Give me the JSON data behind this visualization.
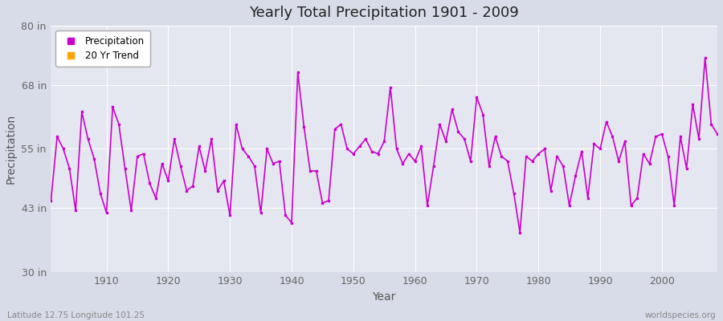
{
  "title": "Yearly Total Precipitation 1901 - 2009",
  "xlabel": "Year",
  "ylabel": "Precipitation",
  "x_label_bottom_left": "Latitude 12.75 Longitude 101.25",
  "x_label_bottom_right": "worldspecies.org",
  "ylim": [
    30,
    80
  ],
  "xlim": [
    1901,
    2009
  ],
  "yticks": [
    30,
    43,
    55,
    68,
    80
  ],
  "ytick_labels": [
    "30 in",
    "43 in",
    "55 in",
    "68 in",
    "80 in"
  ],
  "xticks": [
    1910,
    1920,
    1930,
    1940,
    1950,
    1960,
    1970,
    1980,
    1990,
    2000
  ],
  "bg_color": "#dfe3ee",
  "plot_bg_color": "#e8e8f0",
  "line_color": "#cc00cc",
  "trend_color": "#ffa500",
  "grid_color": "#ffffff",
  "years": [
    1901,
    1902,
    1903,
    1904,
    1905,
    1906,
    1907,
    1908,
    1909,
    1910,
    1911,
    1912,
    1913,
    1914,
    1915,
    1916,
    1917,
    1918,
    1919,
    1920,
    1921,
    1922,
    1923,
    1924,
    1925,
    1926,
    1927,
    1928,
    1929,
    1930,
    1931,
    1932,
    1933,
    1934,
    1935,
    1936,
    1937,
    1938,
    1939,
    1940,
    1941,
    1942,
    1943,
    1944,
    1945,
    1946,
    1947,
    1948,
    1949,
    1950,
    1951,
    1952,
    1953,
    1954,
    1955,
    1956,
    1957,
    1958,
    1959,
    1960,
    1961,
    1962,
    1963,
    1964,
    1965,
    1966,
    1967,
    1968,
    1969,
    1970,
    1971,
    1972,
    1973,
    1974,
    1975,
    1976,
    1977,
    1978,
    1979,
    1980,
    1981,
    1982,
    1983,
    1984,
    1985,
    1986,
    1987,
    1988,
    1989,
    1990,
    1991,
    1992,
    1993,
    1994,
    1995,
    1996,
    1997,
    1998,
    1999,
    2000,
    2001,
    2002,
    2003,
    2004,
    2005,
    2006,
    2007,
    2008,
    2009
  ],
  "precip": [
    44.5,
    57.5,
    55.0,
    51.0,
    42.5,
    62.5,
    57.0,
    53.0,
    46.0,
    42.0,
    63.5,
    60.0,
    51.0,
    42.5,
    53.5,
    54.0,
    48.0,
    45.0,
    52.0,
    48.5,
    57.0,
    51.5,
    46.5,
    47.5,
    55.5,
    50.5,
    57.0,
    46.5,
    48.5,
    41.5,
    60.0,
    55.0,
    53.5,
    51.5,
    42.0,
    55.0,
    52.0,
    52.5,
    41.5,
    40.0,
    70.5,
    59.5,
    50.5,
    50.5,
    44.0,
    44.5,
    59.0,
    60.0,
    55.0,
    54.0,
    55.5,
    57.0,
    54.5,
    54.0,
    56.5,
    67.5,
    55.0,
    52.0,
    54.0,
    52.5,
    55.5,
    43.5,
    51.5,
    60.0,
    56.5,
    63.0,
    58.5,
    57.0,
    52.5,
    65.5,
    62.0,
    51.5,
    57.5,
    53.5,
    52.5,
    46.0,
    38.0,
    53.5,
    52.5,
    54.0,
    55.0,
    46.5,
    53.5,
    51.5,
    43.5,
    49.5,
    54.5,
    45.0,
    56.0,
    55.0,
    60.5,
    57.5,
    52.5,
    56.5,
    43.5,
    45.0,
    54.0,
    52.0,
    57.5,
    58.0,
    53.5,
    43.5,
    57.5,
    51.0,
    64.0,
    57.0,
    73.5,
    60.0,
    58.0
  ],
  "figsize": [
    9.0,
    4.0
  ],
  "dpi": 100
}
